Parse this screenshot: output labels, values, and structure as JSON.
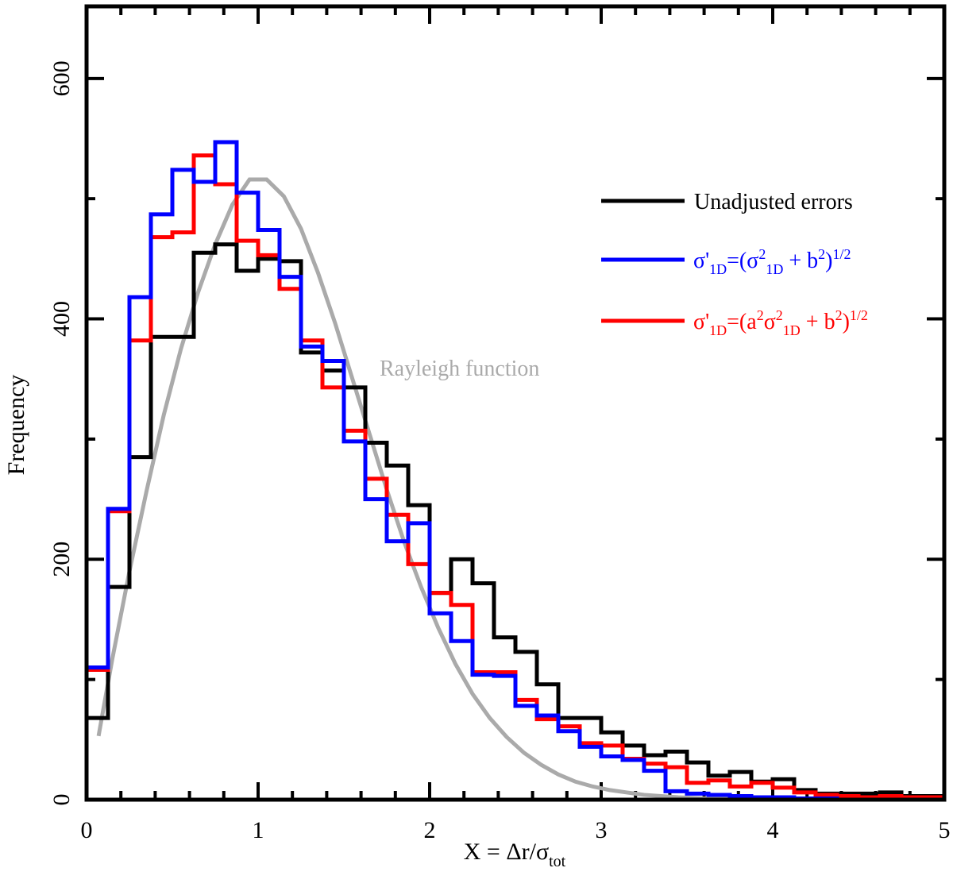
{
  "chart_data": {
    "type": "line",
    "title": "",
    "xlabel": {
      "main": "X = Δr/σ",
      "sub": "tot"
    },
    "ylabel": "Frequency",
    "xlim": [
      0,
      5
    ],
    "ylim": [
      0,
      660
    ],
    "x_ticks": [
      "0",
      "1",
      "2",
      "3",
      "4",
      "5"
    ],
    "y_ticks": [
      "0",
      "200",
      "400",
      "600"
    ],
    "bin_edges": [
      0.0,
      0.125,
      0.25,
      0.375,
      0.5,
      0.625,
      0.75,
      0.875,
      1.0,
      1.125,
      1.25,
      1.375,
      1.5,
      1.625,
      1.75,
      1.875,
      2.0,
      2.125,
      2.25,
      2.375,
      2.5,
      2.625,
      2.75,
      2.875,
      3.0,
      3.125,
      3.25,
      3.375,
      3.5,
      3.625,
      3.75,
      3.875,
      4.0,
      4.125,
      4.25,
      4.375,
      4.5,
      4.625,
      4.75,
      4.875,
      5.0
    ],
    "series": [
      {
        "name": "Unadjusted errors",
        "color": "#000000",
        "values": [
          68,
          177,
          285,
          385,
          385,
          455,
          462,
          440,
          450,
          448,
          372,
          357,
          343,
          297,
          278,
          245,
          172,
          200,
          180,
          135,
          123,
          96,
          68,
          68,
          56,
          45,
          37,
          40,
          31,
          20,
          23,
          15,
          17,
          8,
          5,
          5,
          5,
          6,
          3,
          3
        ]
      },
      {
        "name": "σ'1D=(σ2 1D + b2)1/2",
        "color": "#0000ff",
        "values": [
          110,
          242,
          418,
          487,
          524,
          514,
          547,
          505,
          474,
          435,
          377,
          365,
          298,
          250,
          215,
          230,
          155,
          132,
          104,
          103,
          78,
          70,
          57,
          44,
          36,
          33,
          24,
          7,
          5,
          4,
          3,
          2,
          2,
          1,
          1,
          0,
          0,
          0,
          0,
          0
        ]
      },
      {
        "name": "σ'1D=(a2σ2 1D + b2)1/2",
        "color": "#ff0000",
        "values": [
          108,
          240,
          382,
          468,
          472,
          536,
          512,
          465,
          453,
          425,
          382,
          343,
          307,
          267,
          237,
          196,
          172,
          162,
          106,
          106,
          83,
          67,
          61,
          47,
          45,
          34,
          30,
          27,
          14,
          16,
          11,
          14,
          10,
          6,
          4,
          3,
          2,
          3,
          2,
          2
        ]
      },
      {
        "name": "Rayleigh function",
        "color": "#aaaaaa",
        "x": [
          0.07,
          0.15,
          0.25,
          0.35,
          0.45,
          0.55,
          0.65,
          0.75,
          0.85,
          0.95,
          1.05,
          1.15,
          1.25,
          1.35,
          1.45,
          1.55,
          1.65,
          1.75,
          1.85,
          1.95,
          2.05,
          2.15,
          2.25,
          2.35,
          2.45,
          2.55,
          2.65,
          2.75,
          2.85,
          2.95,
          3.05,
          3.15,
          3.25,
          3.35,
          3.45,
          3.6,
          3.8,
          4.0,
          4.3,
          4.6,
          5.0
        ],
        "values": [
          53,
          117,
          190,
          257,
          320,
          375,
          422,
          462,
          495,
          516,
          516,
          502,
          475,
          438,
          396,
          350,
          304,
          258,
          215,
          177,
          143,
          113,
          88,
          68,
          52,
          39,
          29,
          21,
          15,
          11,
          8,
          6,
          4,
          3,
          2,
          1,
          1,
          0,
          0,
          0,
          0
        ]
      }
    ],
    "legend": {
      "position": "top-right",
      "entries": [
        {
          "label": "Unadjusted errors",
          "color": "#000000"
        },
        {
          "label_main": "σ'",
          "sub1": "1D",
          "eq": "=(σ",
          "sup1": "2",
          "sub2": "1D",
          "mid": " + b",
          "sup2": "2",
          "close": ")",
          "sup3": "1/2",
          "color": "#0000ff"
        },
        {
          "label_main": "σ'",
          "sub1": "1D",
          "eq": "=(a",
          "supA": "2",
          "sigma": "σ",
          "sup1": "2",
          "sub2": "1D",
          "mid": " + b",
          "sup2": "2",
          "close": ")",
          "sup3": "1/2",
          "color": "#ff0000"
        }
      ]
    },
    "annotation": {
      "text": "Rayleigh function",
      "color": "#aaaaaa"
    }
  }
}
